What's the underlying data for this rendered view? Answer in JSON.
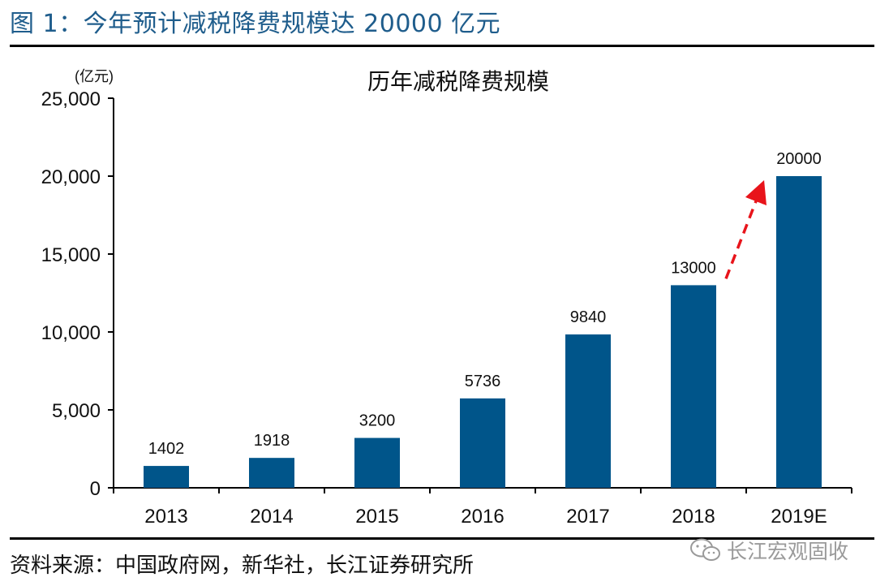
{
  "header": {
    "figure_title": "图 1：今年预计减税降费规模达 20000 亿元"
  },
  "footer": {
    "source": "资料来源：中国政府网，新华社，长江证券研究所",
    "watermark": "长江宏观固收",
    "watermark_icon": "wechat-icon"
  },
  "colors": {
    "bar": "#00558a",
    "arrow": "#e8141b",
    "title": "#1f5d8c"
  },
  "chart_data": {
    "type": "bar",
    "title": "历年减税降费规模",
    "unit_label": "(亿元)",
    "categories": [
      "2013",
      "2014",
      "2015",
      "2016",
      "2017",
      "2018",
      "2019E"
    ],
    "values": [
      1402,
      1918,
      3200,
      5736,
      9840,
      13000,
      20000
    ],
    "data_labels": [
      "1402",
      "1918",
      "3200",
      "5736",
      "9840",
      "13000",
      "20000"
    ],
    "yticks": [
      0,
      5000,
      10000,
      15000,
      20000,
      25000
    ],
    "ytick_labels": [
      "0",
      "5,000",
      "10,000",
      "15,000",
      "20,000",
      "25,000"
    ],
    "ylim": [
      0,
      25000
    ],
    "grid": false,
    "legend": "none",
    "annotation": {
      "type": "dashed-arrow",
      "from": "2018",
      "to": "2019E",
      "color": "#e8141b"
    }
  }
}
